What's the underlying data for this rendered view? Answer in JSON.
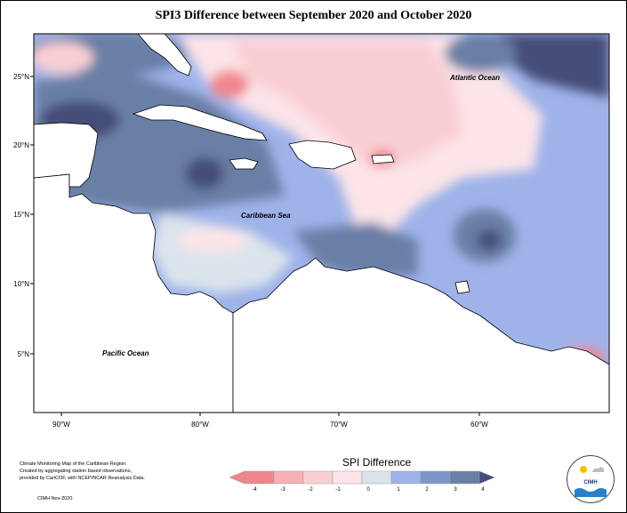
{
  "title": "SPI3 Difference between September 2020 and October 2020",
  "ocean_labels": {
    "atlantic": "Atlantic Ocean",
    "caribbean": "Caribbean Sea",
    "pacific": "Pacific Ocean"
  },
  "lat_ticks": [
    "25°N",
    "20°N",
    "15°N",
    "10°N",
    "5°N"
  ],
  "lon_ticks": [
    "90°W",
    "80°W",
    "70°W",
    "60°W"
  ],
  "colorbar": {
    "title": "SPI Difference",
    "ticks": [
      "-4",
      "-3",
      "-2",
      "-1",
      "0",
      "1",
      "2",
      "3",
      "4"
    ],
    "colors": [
      "#f0868c",
      "#f6b1b6",
      "#f9cfd4",
      "#fce4e8",
      "#dbe4ec",
      "#9fb3ea",
      "#7d97c9",
      "#6a7fa6",
      "#454d78"
    ]
  },
  "credit_lines": [
    "Climate Monitoring Map of the Caribbean Region.",
    "Created by aggregating station based observations,",
    "provided by CariCOF, with NCEP/NCAR Reanalysis Data."
  ],
  "date_label": "CIMH Nov-2020",
  "logo_text": "CIMH",
  "field_colors": {
    "deep_blue": "#454d78",
    "slate": "#6a7fa6",
    "periwinkle": "#9fb3ea",
    "pale": "#dbe4ec",
    "light_pink": "#fce4e8",
    "pink": "#f9cfd4",
    "salmon": "#f0868c",
    "land": "#ffffff"
  }
}
